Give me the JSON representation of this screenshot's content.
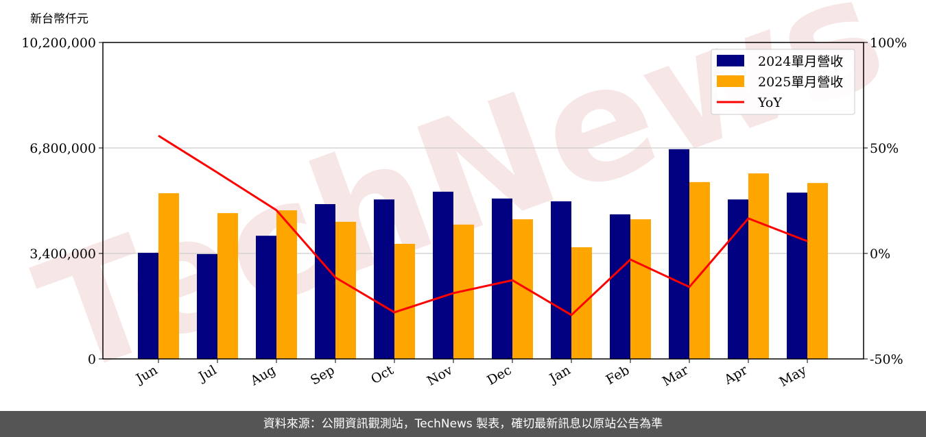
{
  "chart_data": {
    "type": "bar",
    "ylabel_left": "新台幣仟元",
    "categories": [
      "Jun",
      "Jul",
      "Aug",
      "Sep",
      "Oct",
      "Nov",
      "Dec",
      "Jan",
      "Feb",
      "Mar",
      "Apr",
      "May"
    ],
    "series": [
      {
        "name": "2024單月營收",
        "type": "bar",
        "color": "#000080",
        "values": [
          3420000,
          3380000,
          3970000,
          4990000,
          5140000,
          5390000,
          5170000,
          5080000,
          4660000,
          6760000,
          5140000,
          5360000
        ]
      },
      {
        "name": "2025單月營收",
        "type": "bar",
        "color": "#FFA500",
        "values": [
          5340000,
          4700000,
          4790000,
          4420000,
          3710000,
          4330000,
          4500000,
          3600000,
          4500000,
          5700000,
          5980000,
          5670000
        ]
      },
      {
        "name": "YoY",
        "type": "line",
        "axis": "right",
        "color": "#FF0000",
        "values": [
          55.8,
          38.3,
          20.5,
          -11.4,
          -27.9,
          -18.8,
          -12.7,
          -29.2,
          -2.9,
          -15.9,
          16.6,
          5.8
        ]
      }
    ],
    "ylim_left": [
      0,
      10200000
    ],
    "yticks_left": [
      "0",
      "3,400,000",
      "6,800,000",
      "10,200,000"
    ],
    "ylim_right": [
      -50,
      100
    ],
    "yticks_right": [
      "-50%",
      "0%",
      "50%",
      "100%"
    ],
    "grid": "horizontal",
    "legend": "top-right"
  },
  "watermark": "TechNews",
  "footer": "資料來源：公開資訊觀測站，TechNews 製表，確切最新訊息以原站公告為準"
}
